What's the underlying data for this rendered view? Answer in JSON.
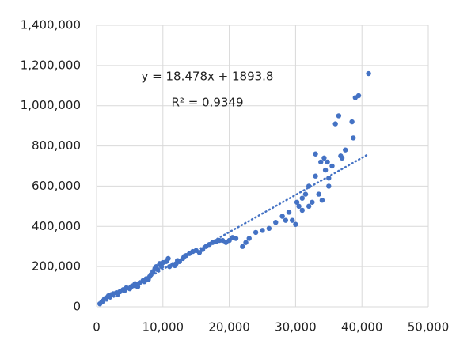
{
  "chart_data": {
    "type": "scatter",
    "annotations": [
      "y = 18.478x + 1893.8",
      "R² = 0.9349"
    ],
    "trendline": {
      "slope": 18.478,
      "intercept": 1893.8
    },
    "color": "#4472c4",
    "grid": true,
    "xlim": [
      0,
      50000
    ],
    "xticks": [
      0,
      {
        "value": 10000,
        "label": "10,000"
      },
      {
        "value": 20000,
        "label": "20,000"
      },
      {
        "value": 30000,
        "label": "30,000"
      },
      {
        "value": 40000,
        "label": "40,000"
      },
      {
        "value": 50000,
        "label": "50,000"
      }
    ],
    "ylim": [
      0,
      1400000
    ],
    "yticks": [
      0,
      {
        "value": 200000,
        "label": "200,000"
      },
      {
        "value": 400000,
        "label": "400,000"
      },
      {
        "value": 600000,
        "label": "600,000"
      },
      {
        "value": 800000,
        "label": "800,000"
      },
      {
        "value": 1000000,
        "label": "1,000,000"
      },
      {
        "value": 1200000,
        "label": "1,200,000"
      },
      {
        "value": 1400000,
        "label": "1,400,000"
      }
    ],
    "x": [
      500,
      800,
      1000,
      1200,
      1500,
      1800,
      2000,
      2200,
      2500,
      3000,
      3200,
      3500,
      4000,
      4200,
      4500,
      5000,
      5200,
      5500,
      6000,
      6200,
      6500,
      7000,
      7200,
      7500,
      8000,
      8200,
      8500,
      8800,
      9000,
      9200,
      9500,
      9800,
      10000,
      10500,
      10800,
      11000,
      11500,
      12000,
      12500,
      13000,
      13500,
      14000,
      14500,
      15000,
      15500,
      16000,
      16500,
      17000,
      17500,
      18000,
      18500,
      19000,
      19500,
      20000,
      20500,
      21000,
      22000,
      22500,
      23000,
      24000,
      25000,
      26000,
      27000,
      28000,
      28500,
      29000,
      29500,
      30000,
      30200,
      30500,
      31000,
      31000,
      31500,
      32000,
      32000,
      32500,
      33000,
      33000,
      33500,
      33800,
      34000,
      34300,
      34500,
      34800,
      35000,
      35000,
      35500,
      36000,
      36500,
      36800,
      37000,
      37500,
      38500,
      38700,
      39000,
      39500,
      41000,
      11800,
      12200,
      13200,
      5800,
      7800
    ],
    "values": [
      15000,
      25000,
      30000,
      40000,
      45000,
      55000,
      50000,
      60000,
      65000,
      70000,
      62000,
      75000,
      85000,
      80000,
      95000,
      90000,
      100000,
      105000,
      110000,
      100000,
      120000,
      130000,
      125000,
      140000,
      150000,
      160000,
      175000,
      190000,
      200000,
      185000,
      215000,
      200000,
      220000,
      225000,
      240000,
      200000,
      210000,
      215000,
      225000,
      240000,
      255000,
      265000,
      275000,
      280000,
      270000,
      285000,
      300000,
      310000,
      320000,
      325000,
      330000,
      330000,
      320000,
      330000,
      345000,
      340000,
      300000,
      320000,
      340000,
      370000,
      380000,
      390000,
      420000,
      450000,
      430000,
      470000,
      430000,
      410000,
      520000,
      500000,
      480000,
      540000,
      560000,
      500000,
      600000,
      520000,
      650000,
      760000,
      560000,
      720000,
      530000,
      740000,
      680000,
      720000,
      640000,
      600000,
      700000,
      910000,
      950000,
      750000,
      740000,
      780000,
      920000,
      840000,
      1040000,
      1050000,
      1160000,
      205000,
      230000,
      250000,
      115000,
      135000
    ]
  }
}
